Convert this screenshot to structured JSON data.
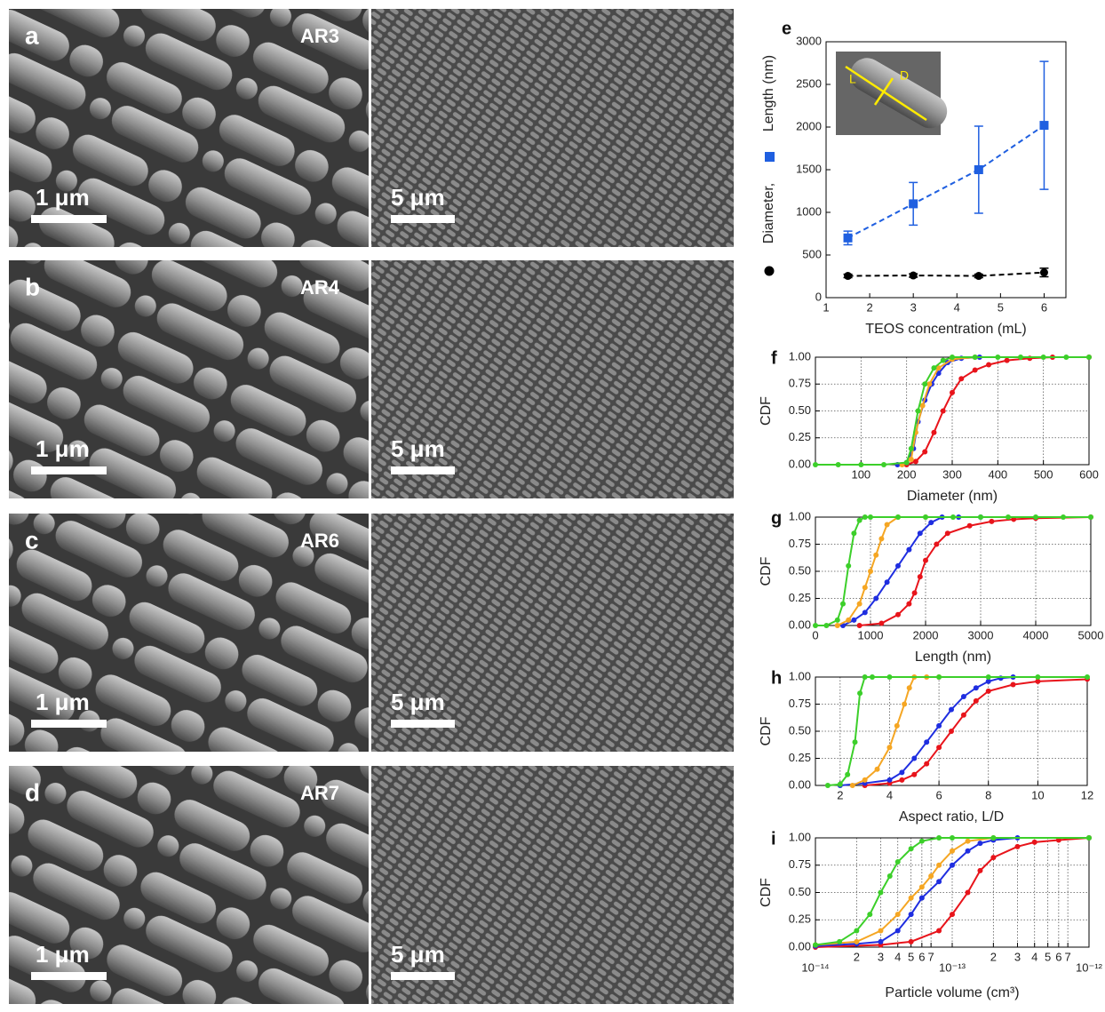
{
  "panels": [
    {
      "label": "a",
      "sample": "AR3",
      "scale_left": "1 μm",
      "scale_right": "5 μm"
    },
    {
      "label": "b",
      "sample": "AR4",
      "scale_left": "1 μm",
      "scale_right": "5 μm"
    },
    {
      "label": "c",
      "sample": "AR6",
      "scale_left": "1 μm",
      "scale_right": "5 μm"
    },
    {
      "label": "d",
      "sample": "AR7",
      "scale_left": "1 μm",
      "scale_right": "5 μm"
    }
  ],
  "chart_data": [
    {
      "type": "line",
      "label": "e",
      "xlabel": "TEOS concentration (mL)",
      "dashed": true,
      "grid": false,
      "xlim": [
        1,
        6.5
      ],
      "xticks": [
        1,
        2,
        3,
        4,
        5,
        6
      ],
      "ylim": [
        0,
        3000
      ],
      "yticks": [
        0,
        500,
        1000,
        1500,
        2000,
        2500,
        3000
      ],
      "inset_labels": [
        "L",
        "D"
      ],
      "series": [
        {
          "name": "Diameter,",
          "color": "#000000",
          "marker": "circle",
          "x": [
            1.5,
            3,
            4.5,
            6
          ],
          "values": [
            255,
            260,
            255,
            295
          ],
          "errors": [
            20,
            20,
            20,
            50
          ]
        },
        {
          "name": "Length (nm)",
          "color": "#1f5fe0",
          "marker": "square",
          "x": [
            1.5,
            3,
            4.5,
            6
          ],
          "values": [
            700,
            1100,
            1500,
            2020
          ],
          "errors": [
            80,
            250,
            510,
            750
          ]
        }
      ]
    },
    {
      "type": "line",
      "label": "f",
      "xlabel": "Diameter (nm)",
      "ylabel": "CDF",
      "grid": true,
      "xlim": [
        0,
        600
      ],
      "xticks": [
        100,
        200,
        300,
        400,
        500,
        600
      ],
      "ylim": [
        0,
        1
      ],
      "yticks": [
        {
          "value": 0,
          "label": "0.00"
        },
        {
          "value": 0.25,
          "label": "0.25"
        },
        {
          "value": 0.5,
          "label": "0.50"
        },
        {
          "value": 0.75,
          "label": "0.75"
        },
        {
          "value": 1,
          "label": "1.00"
        }
      ],
      "series": [
        {
          "color": "#e8141b",
          "x": [
            200,
            220,
            240,
            260,
            280,
            300,
            320,
            350,
            380,
            420,
            470,
            520,
            600
          ],
          "values": [
            0,
            0.03,
            0.12,
            0.3,
            0.5,
            0.67,
            0.8,
            0.88,
            0.93,
            0.97,
            0.99,
            1,
            1
          ]
        },
        {
          "color": "#1f2ee0",
          "x": [
            180,
            200,
            215,
            225,
            240,
            255,
            270,
            290,
            320,
            360
          ],
          "values": [
            0,
            0.02,
            0.15,
            0.4,
            0.6,
            0.75,
            0.85,
            0.95,
            0.99,
            1
          ]
        },
        {
          "color": "#f5a623",
          "x": [
            190,
            210,
            220,
            235,
            250,
            270,
            300,
            350
          ],
          "values": [
            0,
            0.05,
            0.3,
            0.55,
            0.75,
            0.9,
            0.98,
            1
          ]
        },
        {
          "color": "#3ccf2a",
          "x": [
            0,
            50,
            100,
            150,
            200,
            210,
            225,
            240,
            260,
            280,
            300,
            350,
            400,
            450,
            500,
            550,
            600
          ],
          "values": [
            0,
            0,
            0,
            0,
            0.02,
            0.15,
            0.5,
            0.75,
            0.9,
            0.97,
            1,
            1,
            1,
            1,
            1,
            1,
            1
          ]
        }
      ]
    },
    {
      "type": "line",
      "label": "g",
      "xlabel": "Length (nm)",
      "ylabel": "CDF",
      "grid": true,
      "xlim": [
        0,
        5000
      ],
      "xticks": [
        0,
        1000,
        2000,
        3000,
        4000,
        5000
      ],
      "ylim": [
        0,
        1
      ],
      "yticks": [
        {
          "value": 0,
          "label": "0.00"
        },
        {
          "value": 0.25,
          "label": "0.25"
        },
        {
          "value": 0.5,
          "label": "0.50"
        },
        {
          "value": 0.75,
          "label": "0.75"
        },
        {
          "value": 1,
          "label": "1.00"
        }
      ],
      "series": [
        {
          "color": "#e8141b",
          "x": [
            800,
            1200,
            1500,
            1700,
            1800,
            1900,
            2000,
            2200,
            2400,
            2800,
            3200,
            3600,
            4000,
            5000
          ],
          "values": [
            0,
            0.02,
            0.1,
            0.2,
            0.3,
            0.45,
            0.6,
            0.75,
            0.85,
            0.92,
            0.96,
            0.98,
            0.99,
            1
          ]
        },
        {
          "color": "#1f2ee0",
          "x": [
            500,
            700,
            900,
            1100,
            1300,
            1500,
            1700,
            1900,
            2100,
            2300,
            2600,
            3000
          ],
          "values": [
            0,
            0.05,
            0.12,
            0.25,
            0.4,
            0.55,
            0.7,
            0.85,
            0.95,
            1,
            1,
            1
          ]
        },
        {
          "color": "#f5a623",
          "x": [
            400,
            600,
            800,
            900,
            1000,
            1100,
            1200,
            1300,
            1500,
            2000
          ],
          "values": [
            0,
            0.05,
            0.2,
            0.35,
            0.5,
            0.65,
            0.8,
            0.93,
            1,
            1
          ]
        },
        {
          "color": "#3ccf2a",
          "x": [
            0,
            200,
            400,
            500,
            600,
            700,
            800,
            900,
            1000,
            1500,
            2000,
            2500,
            3000,
            3500,
            4000,
            4500,
            5000
          ],
          "values": [
            0,
            0,
            0.05,
            0.2,
            0.55,
            0.85,
            0.97,
            1,
            1,
            1,
            1,
            1,
            1,
            1,
            1,
            1,
            1
          ]
        }
      ]
    },
    {
      "type": "line",
      "label": "h",
      "xlabel": "Aspect ratio, L/D",
      "ylabel": "CDF",
      "grid": true,
      "xlim": [
        1,
        12
      ],
      "xticks": [
        2,
        4,
        6,
        8,
        10,
        12
      ],
      "ylim": [
        0,
        1
      ],
      "yticks": [
        {
          "value": 0,
          "label": "0.00"
        },
        {
          "value": 0.25,
          "label": "0.25"
        },
        {
          "value": 0.5,
          "label": "0.50"
        },
        {
          "value": 0.75,
          "label": "0.75"
        },
        {
          "value": 1,
          "label": "1.00"
        }
      ],
      "series": [
        {
          "color": "#e8141b",
          "x": [
            3,
            4,
            4.5,
            5,
            5.5,
            6,
            6.5,
            7,
            7.5,
            8,
            9,
            10,
            12
          ],
          "values": [
            0,
            0.02,
            0.05,
            0.1,
            0.2,
            0.35,
            0.5,
            0.65,
            0.78,
            0.87,
            0.93,
            0.96,
            0.98
          ]
        },
        {
          "color": "#1f2ee0",
          "x": [
            2,
            3,
            4,
            4.5,
            5,
            5.5,
            6,
            6.5,
            7,
            7.5,
            8,
            8.5,
            9
          ],
          "values": [
            0,
            0.02,
            0.05,
            0.12,
            0.25,
            0.4,
            0.55,
            0.7,
            0.82,
            0.9,
            0.96,
            0.99,
            1
          ]
        },
        {
          "color": "#f5a623",
          "x": [
            2.5,
            3,
            3.5,
            4,
            4.3,
            4.6,
            4.8,
            5,
            5.5,
            6
          ],
          "values": [
            0,
            0.05,
            0.15,
            0.35,
            0.55,
            0.75,
            0.9,
            1,
            1,
            1
          ]
        },
        {
          "color": "#3ccf2a",
          "x": [
            1.5,
            2,
            2.3,
            2.6,
            2.8,
            3,
            3.3,
            4,
            6,
            8,
            10,
            12
          ],
          "values": [
            0,
            0.01,
            0.1,
            0.4,
            0.85,
            1,
            1,
            1,
            1,
            1,
            1,
            1
          ]
        }
      ]
    },
    {
      "type": "line",
      "label": "i",
      "xlabel": "Particle volume (cm³)",
      "ylabel": "CDF",
      "grid": true,
      "xscale": "log",
      "xlim": [
        1e-14,
        1e-12
      ],
      "xticks": [
        {
          "value": 1e-14,
          "label": "10⁻¹⁴"
        },
        {
          "value": 2e-14,
          "label": "2"
        },
        {
          "value": 3e-14,
          "label": "3"
        },
        {
          "value": 4e-14,
          "label": "4"
        },
        {
          "value": 5e-14,
          "label": "5"
        },
        {
          "value": 6e-14,
          "label": "6"
        },
        {
          "value": 7e-14,
          "label": "7"
        },
        {
          "value": 1e-13,
          "label": "10⁻¹³"
        },
        {
          "value": 2e-13,
          "label": "2"
        },
        {
          "value": 3e-13,
          "label": "3"
        },
        {
          "value": 4e-13,
          "label": "4"
        },
        {
          "value": 5e-13,
          "label": "5"
        },
        {
          "value": 6e-13,
          "label": "6"
        },
        {
          "value": 7e-13,
          "label": "7"
        },
        {
          "value": 1e-12,
          "label": "10⁻¹²"
        }
      ],
      "ylim": [
        0,
        1
      ],
      "yticks": [
        {
          "value": 0,
          "label": "0.00"
        },
        {
          "value": 0.25,
          "label": "0.25"
        },
        {
          "value": 0.5,
          "label": "0.50"
        },
        {
          "value": 0.75,
          "label": "0.75"
        },
        {
          "value": 1,
          "label": "1.00"
        }
      ],
      "series": [
        {
          "color": "#e8141b",
          "x": [
            1e-14,
            3e-14,
            5e-14,
            8e-14,
            1e-13,
            1.3e-13,
            1.6e-13,
            2e-13,
            3e-13,
            4e-13,
            6e-13,
            1e-12
          ],
          "values": [
            0,
            0.02,
            0.05,
            0.15,
            0.3,
            0.5,
            0.7,
            0.82,
            0.92,
            0.96,
            0.98,
            1
          ]
        },
        {
          "color": "#1f2ee0",
          "x": [
            1e-14,
            2e-14,
            3e-14,
            4e-14,
            5e-14,
            6e-14,
            8e-14,
            1e-13,
            1.3e-13,
            1.6e-13,
            2e-13,
            3e-13,
            1e-12
          ],
          "values": [
            0.01,
            0.03,
            0.05,
            0.15,
            0.3,
            0.45,
            0.6,
            0.75,
            0.88,
            0.95,
            0.98,
            1,
            1
          ]
        },
        {
          "color": "#f5a623",
          "x": [
            1e-14,
            2e-14,
            3e-14,
            4e-14,
            5e-14,
            6e-14,
            7e-14,
            8e-14,
            1e-13,
            1.3e-13,
            2e-13,
            1e-12
          ],
          "values": [
            0.02,
            0.05,
            0.15,
            0.3,
            0.45,
            0.55,
            0.65,
            0.75,
            0.88,
            0.97,
            1,
            1
          ]
        },
        {
          "color": "#3ccf2a",
          "x": [
            1e-14,
            1.5e-14,
            2e-14,
            2.5e-14,
            3e-14,
            3.5e-14,
            4e-14,
            5e-14,
            6e-14,
            8e-14,
            1e-13,
            2e-13,
            1e-12
          ],
          "values": [
            0.02,
            0.05,
            0.15,
            0.3,
            0.5,
            0.65,
            0.78,
            0.9,
            0.97,
            1,
            1,
            1,
            1
          ]
        }
      ]
    }
  ]
}
